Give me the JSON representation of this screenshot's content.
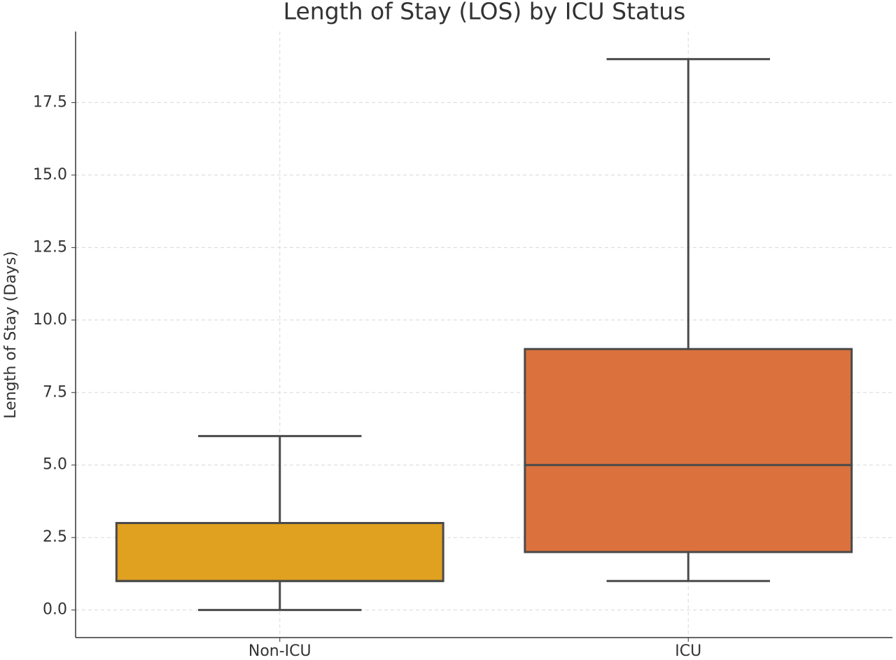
{
  "chart_data": {
    "type": "box",
    "title": "Length of Stay (LOS) by ICU Status",
    "y_label": "Length of Stay (Days)",
    "categories": [
      "Non-ICU",
      "ICU"
    ],
    "boxes": [
      {
        "min": 0,
        "q1": 1,
        "median": 1,
        "q3": 3,
        "max": 6,
        "color": "#e0a020"
      },
      {
        "min": 1,
        "q1": 2,
        "median": 5,
        "q3": 9,
        "max": 19,
        "color": "#db713d"
      }
    ],
    "ylim": [
      -0.95,
      19.95
    ],
    "yticks": [
      {
        "value": 0,
        "label": "0.0"
      },
      2.5,
      {
        "value": 5,
        "label": "5.0"
      },
      7.5,
      {
        "value": 10,
        "label": "10.0"
      },
      12.5,
      {
        "value": 15,
        "label": "15.0"
      },
      17.5
    ],
    "grid": true
  }
}
